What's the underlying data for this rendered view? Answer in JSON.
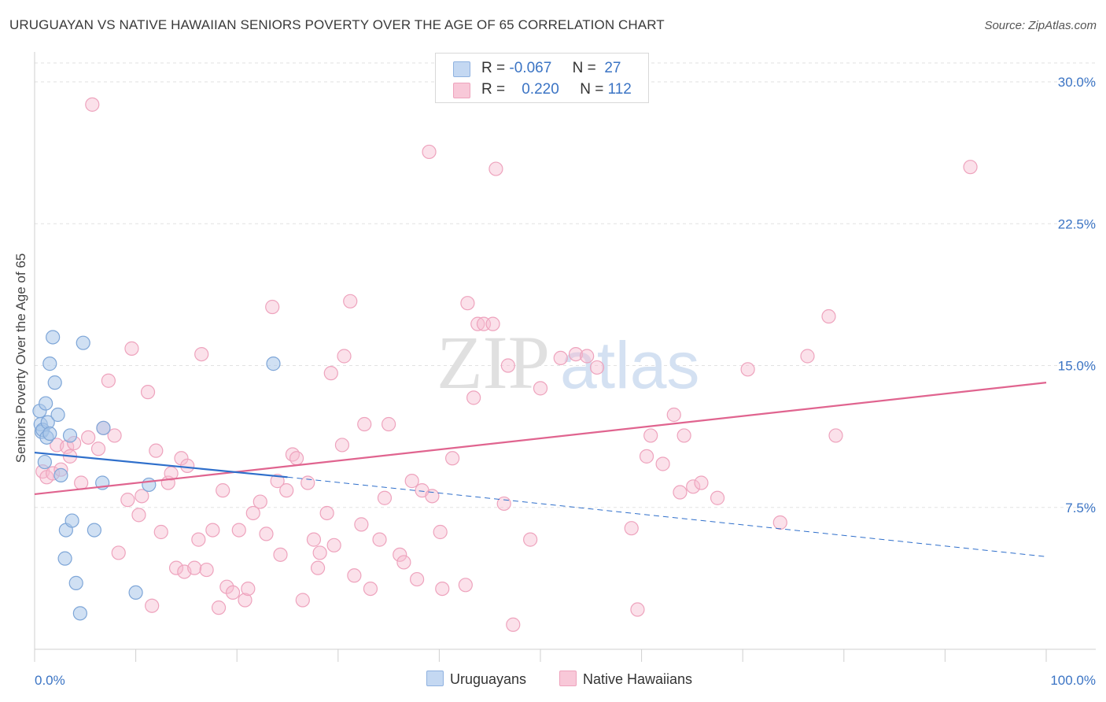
{
  "header": {
    "title": "URUGUAYAN VS NATIVE HAWAIIAN SENIORS POVERTY OVER THE AGE OF 65 CORRELATION CHART",
    "source": "Source: ZipAtlas.com"
  },
  "watermark": {
    "zip": "ZIP",
    "atlas": "atlas"
  },
  "legend_stats": [
    {
      "r_label": "R =",
      "r_value": "-0.067",
      "n_label": "N =",
      "n_value": "27"
    },
    {
      "r_label": "R =",
      "r_value": "0.220",
      "n_label": "N =",
      "n_value": "112"
    }
  ],
  "chart_data": {
    "type": "scatter",
    "title": "URUGUAYAN VS NATIVE HAWAIIAN SENIORS POVERTY OVER THE AGE OF 65 CORRELATION CHART",
    "xlabel": "",
    "ylabel": "Seniors Poverty Over the Age of 65",
    "xlim": [
      0,
      100
    ],
    "ylim": [
      0,
      31
    ],
    "x_tick_labels": [
      "0.0%",
      "100.0%"
    ],
    "y_ticks": [
      7.5,
      15.0,
      22.5,
      30.0
    ],
    "y_tick_labels": [
      "7.5%",
      "15.0%",
      "22.5%",
      "30.0%"
    ],
    "grid": true,
    "legend_position": "bottom",
    "series": [
      {
        "name": "Uruguayans",
        "color": "#a9c6ea",
        "line_color": "#2f6fcb",
        "r": -0.067,
        "n": 27,
        "trend": {
          "x0": 0,
          "y0": 10.4,
          "x1": 25,
          "y1": 9.1,
          "dash_to_x": 100,
          "dash_to_y": 4.9
        },
        "points": [
          [
            0.5,
            12.6
          ],
          [
            0.6,
            11.9
          ],
          [
            0.7,
            11.5
          ],
          [
            0.8,
            11.6
          ],
          [
            1.0,
            9.9
          ],
          [
            1.1,
            13.0
          ],
          [
            1.2,
            11.2
          ],
          [
            1.3,
            12.0
          ],
          [
            1.5,
            11.4
          ],
          [
            1.5,
            15.1
          ],
          [
            1.8,
            16.5
          ],
          [
            2.0,
            14.1
          ],
          [
            2.3,
            12.4
          ],
          [
            2.6,
            9.2
          ],
          [
            3.0,
            4.8
          ],
          [
            3.1,
            6.3
          ],
          [
            3.5,
            11.3
          ],
          [
            3.7,
            6.8
          ],
          [
            4.1,
            3.5
          ],
          [
            4.5,
            1.9
          ],
          [
            4.8,
            16.2
          ],
          [
            5.9,
            6.3
          ],
          [
            6.7,
            8.8
          ],
          [
            6.8,
            11.7
          ],
          [
            10.0,
            3.0
          ],
          [
            11.3,
            8.7
          ],
          [
            23.6,
            15.1
          ]
        ]
      },
      {
        "name": "Native Hawaiians",
        "color": "#f6bcd0",
        "line_color": "#e0648f",
        "r": 0.22,
        "n": 112,
        "trend": {
          "x0": 0,
          "y0": 8.2,
          "x1": 100,
          "y1": 14.1
        },
        "points": [
          [
            0.8,
            9.4
          ],
          [
            1.2,
            9.1
          ],
          [
            1.8,
            9.3
          ],
          [
            2.2,
            10.8
          ],
          [
            2.6,
            9.5
          ],
          [
            3.2,
            10.7
          ],
          [
            3.5,
            10.2
          ],
          [
            3.9,
            10.9
          ],
          [
            4.6,
            8.8
          ],
          [
            5.3,
            11.2
          ],
          [
            5.7,
            28.8
          ],
          [
            6.3,
            10.6
          ],
          [
            6.8,
            11.7
          ],
          [
            7.3,
            14.2
          ],
          [
            7.9,
            11.3
          ],
          [
            8.3,
            5.1
          ],
          [
            9.2,
            7.9
          ],
          [
            9.6,
            15.9
          ],
          [
            10.3,
            7.1
          ],
          [
            10.6,
            8.1
          ],
          [
            11.2,
            13.6
          ],
          [
            11.6,
            2.3
          ],
          [
            12.0,
            10.5
          ],
          [
            12.5,
            6.2
          ],
          [
            13.2,
            8.8
          ],
          [
            13.5,
            9.3
          ],
          [
            14.0,
            4.3
          ],
          [
            14.5,
            10.1
          ],
          [
            14.8,
            4.1
          ],
          [
            15.1,
            9.7
          ],
          [
            15.8,
            4.3
          ],
          [
            16.2,
            5.8
          ],
          [
            16.5,
            15.6
          ],
          [
            17.0,
            4.2
          ],
          [
            17.6,
            6.3
          ],
          [
            18.2,
            2.2
          ],
          [
            18.6,
            8.4
          ],
          [
            19.0,
            3.3
          ],
          [
            19.6,
            3.0
          ],
          [
            20.2,
            6.3
          ],
          [
            20.8,
            2.6
          ],
          [
            21.1,
            3.2
          ],
          [
            21.6,
            7.2
          ],
          [
            22.3,
            7.8
          ],
          [
            22.9,
            6.1
          ],
          [
            23.5,
            18.1
          ],
          [
            24.0,
            8.9
          ],
          [
            24.3,
            5.0
          ],
          [
            24.9,
            8.4
          ],
          [
            25.5,
            10.3
          ],
          [
            25.9,
            10.1
          ],
          [
            26.5,
            2.6
          ],
          [
            27.0,
            8.8
          ],
          [
            27.6,
            5.8
          ],
          [
            28.0,
            4.3
          ],
          [
            28.2,
            5.1
          ],
          [
            28.9,
            7.2
          ],
          [
            29.3,
            14.6
          ],
          [
            29.6,
            5.5
          ],
          [
            30.4,
            10.8
          ],
          [
            30.6,
            15.5
          ],
          [
            31.2,
            18.4
          ],
          [
            31.6,
            3.9
          ],
          [
            32.3,
            6.6
          ],
          [
            32.6,
            11.9
          ],
          [
            33.2,
            3.2
          ],
          [
            34.1,
            5.8
          ],
          [
            34.6,
            8.0
          ],
          [
            35.0,
            11.9
          ],
          [
            36.1,
            5.0
          ],
          [
            36.5,
            4.6
          ],
          [
            37.3,
            8.9
          ],
          [
            37.8,
            3.7
          ],
          [
            38.3,
            8.4
          ],
          [
            39.0,
            26.3
          ],
          [
            39.3,
            8.1
          ],
          [
            40.1,
            6.2
          ],
          [
            40.3,
            3.2
          ],
          [
            41.3,
            10.1
          ],
          [
            42.6,
            3.4
          ],
          [
            42.8,
            18.3
          ],
          [
            43.4,
            13.3
          ],
          [
            43.8,
            17.2
          ],
          [
            44.4,
            17.2
          ],
          [
            45.3,
            17.2
          ],
          [
            45.6,
            25.4
          ],
          [
            46.4,
            7.7
          ],
          [
            46.8,
            15.0
          ],
          [
            49.0,
            5.8
          ],
          [
            50.0,
            13.8
          ],
          [
            52.0,
            15.4
          ],
          [
            53.5,
            15.6
          ],
          [
            54.6,
            15.5
          ],
          [
            55.6,
            14.9
          ],
          [
            59.0,
            6.4
          ],
          [
            59.6,
            2.1
          ],
          [
            60.5,
            10.2
          ],
          [
            60.9,
            11.3
          ],
          [
            62.1,
            9.8
          ],
          [
            63.2,
            12.4
          ],
          [
            63.8,
            8.3
          ],
          [
            64.2,
            11.3
          ],
          [
            65.1,
            8.6
          ],
          [
            65.9,
            8.8
          ],
          [
            67.5,
            8.0
          ],
          [
            70.5,
            14.8
          ],
          [
            73.7,
            6.7
          ],
          [
            76.4,
            15.5
          ],
          [
            78.5,
            17.6
          ],
          [
            79.2,
            11.3
          ],
          [
            92.5,
            25.5
          ],
          [
            47.3,
            1.3
          ]
        ]
      }
    ]
  }
}
